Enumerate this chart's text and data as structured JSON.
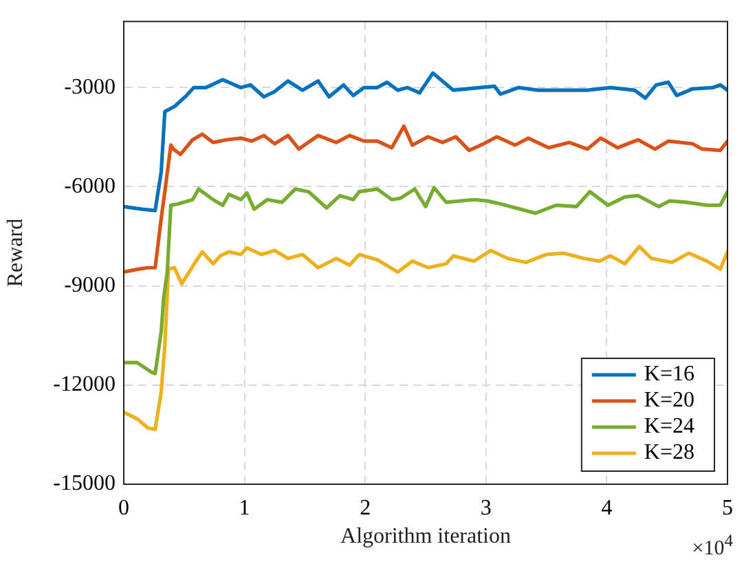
{
  "chart_data": {
    "type": "line",
    "xlabel": "Algorithm iteration",
    "ylabel": "Reward",
    "xlim": [
      0,
      5
    ],
    "xticks": [
      0,
      1,
      2,
      3,
      4,
      5
    ],
    "ylim": [
      -15000,
      -1000
    ],
    "yticks": [
      -15000,
      -12000,
      -9000,
      -6000,
      -3000
    ],
    "annotations": [
      "×10$^{4}$"
    ],
    "grid": true,
    "legend": "bottom right",
    "marker": "none",
    "line_style": "solid",
    "series": [
      {
        "name": "K=16",
        "color": "#0072bd",
        "x": [
          0,
          0.15,
          0.26,
          0.31,
          0.34,
          0.42,
          0.52,
          0.58,
          0.68,
          0.82,
          0.97,
          1.05,
          1.16,
          1.25,
          1.36,
          1.48,
          1.61,
          1.7,
          1.82,
          1.9,
          1.99,
          2.1,
          2.18,
          2.27,
          2.35,
          2.45,
          2.56,
          2.73,
          2.95,
          3.07,
          3.12,
          3.27,
          3.43,
          3.64,
          3.84,
          4.03,
          4.23,
          4.32,
          4.41,
          4.51,
          4.58,
          4.71,
          4.88,
          4.94,
          5
        ],
        "values": [
          -6600,
          -6680,
          -6720,
          -5550,
          -3730,
          -3570,
          -3240,
          -3000,
          -3000,
          -2760,
          -3000,
          -2920,
          -3280,
          -3120,
          -2800,
          -3080,
          -2800,
          -3280,
          -2920,
          -3240,
          -3000,
          -3000,
          -2840,
          -3080,
          -3000,
          -3160,
          -2560,
          -3080,
          -3000,
          -2960,
          -3200,
          -3000,
          -3080,
          -3080,
          -3080,
          -3000,
          -3080,
          -3320,
          -2920,
          -2840,
          -3240,
          -3040,
          -3000,
          -2920,
          -3080
        ]
      },
      {
        "name": "K=20",
        "color": "#d95319",
        "x": [
          0,
          0.11,
          0.2,
          0.26,
          0.31,
          0.34,
          0.39,
          0.41,
          0.47,
          0.57,
          0.65,
          0.74,
          0.85,
          0.97,
          1.06,
          1.16,
          1.25,
          1.36,
          1.45,
          1.61,
          1.76,
          1.87,
          1.99,
          2.1,
          2.22,
          2.32,
          2.39,
          2.52,
          2.64,
          2.75,
          2.86,
          2.98,
          3.09,
          3.24,
          3.35,
          3.52,
          3.69,
          3.84,
          3.95,
          4.09,
          4.26,
          4.4,
          4.51,
          4.71,
          4.79,
          4.94,
          5
        ],
        "values": [
          -8580,
          -8500,
          -8450,
          -8450,
          -6960,
          -6150,
          -4740,
          -4860,
          -5020,
          -4580,
          -4410,
          -4660,
          -4580,
          -4530,
          -4620,
          -4450,
          -4700,
          -4450,
          -4860,
          -4450,
          -4660,
          -4450,
          -4620,
          -4620,
          -4820,
          -4170,
          -4740,
          -4490,
          -4660,
          -4490,
          -4900,
          -4700,
          -4490,
          -4740,
          -4530,
          -4820,
          -4660,
          -4860,
          -4530,
          -4820,
          -4580,
          -4860,
          -4620,
          -4700,
          -4860,
          -4900,
          -4620
        ]
      },
      {
        "name": "K=24",
        "color": "#77ac30",
        "x": [
          0,
          0.11,
          0.23,
          0.26,
          0.31,
          0.33,
          0.36,
          0.39,
          0.45,
          0.57,
          0.62,
          0.74,
          0.82,
          0.87,
          0.97,
          1.02,
          1.08,
          1.19,
          1.31,
          1.42,
          1.53,
          1.68,
          1.79,
          1.9,
          1.95,
          2.1,
          2.22,
          2.29,
          2.41,
          2.5,
          2.57,
          2.67,
          2.9,
          3.01,
          3.12,
          3.41,
          3.58,
          3.75,
          3.86,
          4.01,
          4.15,
          4.26,
          4.43,
          4.52,
          4.66,
          4.83,
          4.94,
          5
        ],
        "values": [
          -11320,
          -11320,
          -11610,
          -11650,
          -10390,
          -9380,
          -8580,
          -6560,
          -6520,
          -6390,
          -6070,
          -6390,
          -6560,
          -6230,
          -6390,
          -6190,
          -6680,
          -6390,
          -6470,
          -6070,
          -6150,
          -6640,
          -6270,
          -6390,
          -6150,
          -6070,
          -6390,
          -6350,
          -6070,
          -6600,
          -6030,
          -6470,
          -6390,
          -6430,
          -6520,
          -6800,
          -6560,
          -6600,
          -6150,
          -6560,
          -6310,
          -6270,
          -6600,
          -6430,
          -6470,
          -6560,
          -6560,
          -6150
        ]
      },
      {
        "name": "K=28",
        "color": "#edb120",
        "x": [
          0,
          0.11,
          0.2,
          0.26,
          0.31,
          0.34,
          0.37,
          0.42,
          0.48,
          0.57,
          0.65,
          0.74,
          0.8,
          0.87,
          0.97,
          1.02,
          1.14,
          1.25,
          1.36,
          1.48,
          1.61,
          1.76,
          1.87,
          1.95,
          2.1,
          2.27,
          2.39,
          2.52,
          2.67,
          2.73,
          2.9,
          3.04,
          3.18,
          3.33,
          3.5,
          3.64,
          3.81,
          3.94,
          4.03,
          4.15,
          4.27,
          4.37,
          4.54,
          4.68,
          4.83,
          4.94,
          5
        ],
        "values": [
          -12820,
          -13020,
          -13300,
          -13340,
          -12210,
          -10800,
          -8490,
          -8450,
          -8940,
          -8410,
          -7970,
          -8330,
          -8090,
          -7970,
          -8050,
          -7850,
          -8050,
          -7930,
          -8170,
          -8050,
          -8450,
          -8170,
          -8370,
          -8050,
          -8210,
          -8580,
          -8250,
          -8450,
          -8330,
          -8090,
          -8250,
          -7930,
          -8170,
          -8290,
          -8050,
          -8010,
          -8170,
          -8250,
          -8090,
          -8330,
          -7810,
          -8170,
          -8290,
          -8010,
          -8250,
          -8490,
          -7970
        ]
      }
    ]
  }
}
